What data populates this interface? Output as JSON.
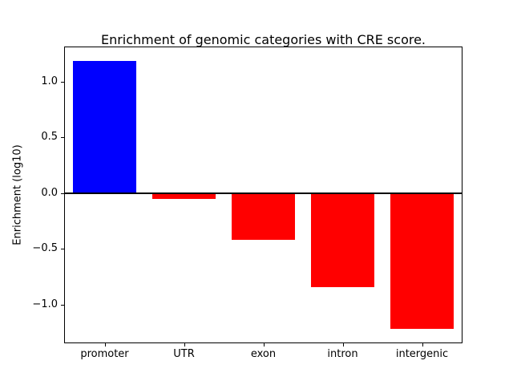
{
  "chart_data": {
    "type": "bar",
    "title": "Enrichment of genomic categories with CRE score.",
    "xlabel": "",
    "ylabel": "Enrichment (log10)",
    "categories": [
      "promoter",
      "UTR",
      "exon",
      "intron",
      "intergenic"
    ],
    "values": [
      1.19,
      -0.05,
      -0.42,
      -0.84,
      -1.22
    ],
    "bar_colors": [
      "#0000ff",
      "#ff0000",
      "#ff0000",
      "#ff0000",
      "#ff0000"
    ],
    "ylim": [
      -1.34,
      1.31
    ],
    "yticks": [
      -1.0,
      -0.5,
      0.0,
      0.5,
      1.0
    ],
    "ytick_labels": [
      "−1.0",
      "−0.5",
      "0.0",
      "0.5",
      "1.0"
    ],
    "zero_line": true,
    "grid": false,
    "legend_position": "none"
  },
  "colors": {
    "positive_bar": "#0000ff",
    "negative_bar": "#ff0000",
    "axis": "#000000",
    "background": "#ffffff"
  }
}
